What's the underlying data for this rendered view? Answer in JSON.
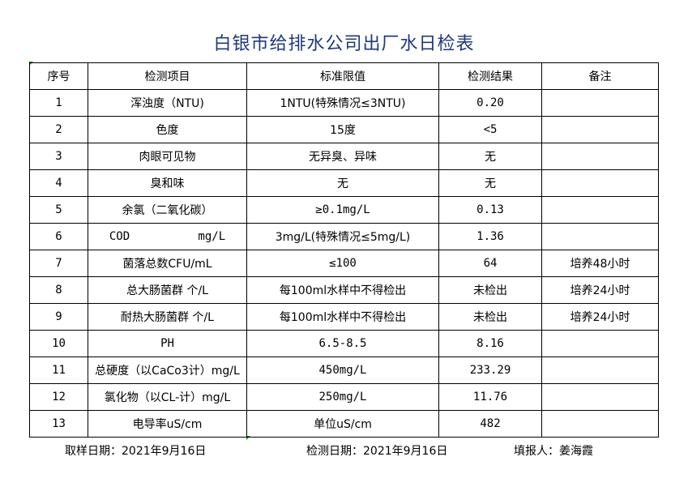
{
  "title": "白银市给排水公司出厂水日检表",
  "table": {
    "headers": [
      "序号",
      "检测项目",
      "标准限值",
      "检测结果",
      "备注"
    ],
    "rows": [
      [
        "1",
        "浑浊度（NTU)",
        "1NTU(特殊情况≤3NTU)",
        "0.20",
        ""
      ],
      [
        "2",
        "色度",
        "15度",
        "<5",
        ""
      ],
      [
        "3",
        "肉眼可见物",
        "无异臭、异味",
        "无",
        ""
      ],
      [
        "4",
        "臭和味",
        "无",
        "无",
        ""
      ],
      [
        "5",
        "余氯（二氧化碳）",
        "≥0.1mg/L",
        "0.13",
        ""
      ],
      [
        "6",
        "COD          mg/L",
        "3mg/L(特殊情况≤5mg/L)",
        "1.36",
        ""
      ],
      [
        "7",
        "菌落总数CFU/mL",
        "≤100",
        "64",
        "培养48小时"
      ],
      [
        "8",
        "总大肠菌群 个/L",
        "每100ml水样中不得检出",
        "未检出",
        "培养24小时"
      ],
      [
        "9",
        "耐热大肠菌群 个/L",
        "每100ml水样中不得检出",
        "未检出",
        "培养24小时"
      ],
      [
        "10",
        "PH",
        "6.5-8.5",
        "8.16",
        ""
      ],
      [
        "11",
        "总硬度（以CaCo3计）mg/L",
        "450mg/L",
        "233.29",
        ""
      ],
      [
        "12",
        "氯化物（以CL-计）mg/L",
        "250mg/L",
        "11.76",
        ""
      ],
      [
        "13",
        "电导率uS/cm",
        "单位uS/cm",
        "482",
        ""
      ]
    ]
  },
  "footer": {
    "sample_date": "取样日期：2021年9月16日",
    "test_date": "检测日期：2021年9月16日",
    "reporter": "填报人：姜海霞"
  },
  "colors": {
    "title": "#1f3a7a",
    "cell_marker": "#1a8a1a"
  }
}
